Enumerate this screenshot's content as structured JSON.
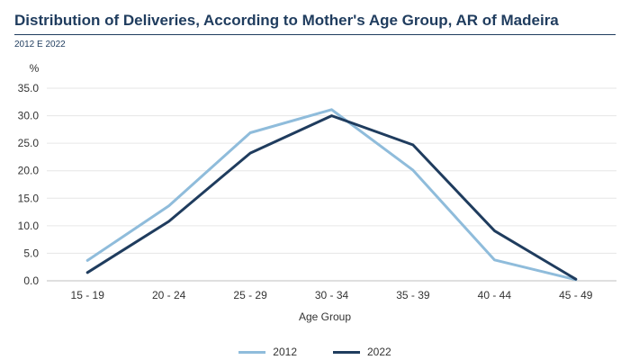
{
  "header": {
    "title": "Distribution of Deliveries, According to Mother's Age Group, AR of Madeira",
    "subtitle": "2012 E 2022"
  },
  "chart_data": {
    "type": "line",
    "title": "Distribution of Deliveries, According to Mother's Age Group, AR of Madeira",
    "subtitle": "2012 E 2022",
    "xlabel": "Age Group",
    "ylabel": "%",
    "categories": [
      "15 - 19",
      "20 - 24",
      "25 - 29",
      "30 - 34",
      "35 - 39",
      "40 - 44",
      "45 - 49"
    ],
    "ylim": [
      0,
      35
    ],
    "yticks": [
      "0.0",
      "5.0",
      "10.0",
      "15.0",
      "20.0",
      "25.0",
      "30.0",
      "35.0"
    ],
    "grid": true,
    "legend": "bottom",
    "series": [
      {
        "name": "2012",
        "color": "#8fbcdb",
        "values": [
          3.7,
          13.6,
          26.9,
          31.1,
          20.1,
          3.8,
          0.2
        ]
      },
      {
        "name": "2022",
        "color": "#1f3c5e",
        "values": [
          1.5,
          10.8,
          23.2,
          30.0,
          24.7,
          9.1,
          0.3
        ]
      }
    ]
  }
}
